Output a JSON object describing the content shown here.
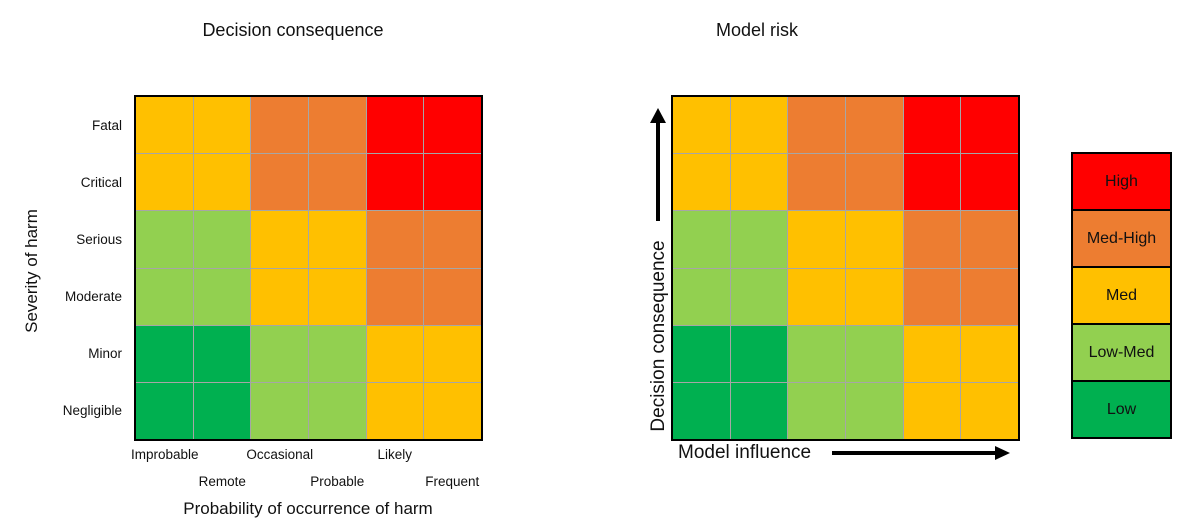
{
  "colors": {
    "high": "#FF0000",
    "med_high": "#ED7D31",
    "med": "#FFC000",
    "low_med": "#92D050",
    "low": "#00B050",
    "grid_line": "#A6A6A6",
    "border": "#000000"
  },
  "legend": {
    "items": [
      "High",
      "Med-High",
      "Med",
      "Low-Med",
      "Low"
    ]
  },
  "chart_data": [
    {
      "type": "heatmap",
      "title": "Decision consequence",
      "xlabel": "Probability of occurrence of harm",
      "ylabel": "Severity of harm",
      "x_categories": [
        "Improbable",
        "Remote",
        "Occasional",
        "Probable",
        "Likely",
        "Frequent"
      ],
      "y_categories": [
        "Fatal",
        "Critical",
        "Serious",
        "Moderate",
        "Minor",
        "Negligible"
      ],
      "values": [
        [
          "Med",
          "Med",
          "Med-High",
          "Med-High",
          "High",
          "High"
        ],
        [
          "Med",
          "Med",
          "Med-High",
          "Med-High",
          "High",
          "High"
        ],
        [
          "Low-Med",
          "Low-Med",
          "Med",
          "Med",
          "Med-High",
          "Med-High"
        ],
        [
          "Low-Med",
          "Low-Med",
          "Med",
          "Med",
          "Med-High",
          "Med-High"
        ],
        [
          "Low",
          "Low",
          "Low-Med",
          "Low-Med",
          "Med",
          "Med"
        ],
        [
          "Low",
          "Low",
          "Low-Med",
          "Low-Med",
          "Med",
          "Med"
        ]
      ],
      "legend": [
        "High",
        "Med-High",
        "Med",
        "Low-Med",
        "Low"
      ],
      "legend_position": "right",
      "grid": true,
      "x_tick_layout": "staggered-two-rows"
    },
    {
      "type": "heatmap",
      "title": "Model risk",
      "xlabel": "Model influence",
      "ylabel": "Decision consequence",
      "x_categories": [],
      "y_categories": [],
      "axis_style": "arrows",
      "values": [
        [
          "Med",
          "Med",
          "Med-High",
          "Med-High",
          "High",
          "High"
        ],
        [
          "Med",
          "Med",
          "Med-High",
          "Med-High",
          "High",
          "High"
        ],
        [
          "Low-Med",
          "Low-Med",
          "Med",
          "Med",
          "Med-High",
          "Med-High"
        ],
        [
          "Low-Med",
          "Low-Med",
          "Med",
          "Med",
          "Med-High",
          "Med-High"
        ],
        [
          "Low",
          "Low",
          "Low-Med",
          "Low-Med",
          "Med",
          "Med"
        ],
        [
          "Low",
          "Low",
          "Low-Med",
          "Low-Med",
          "Med",
          "Med"
        ]
      ]
    }
  ]
}
